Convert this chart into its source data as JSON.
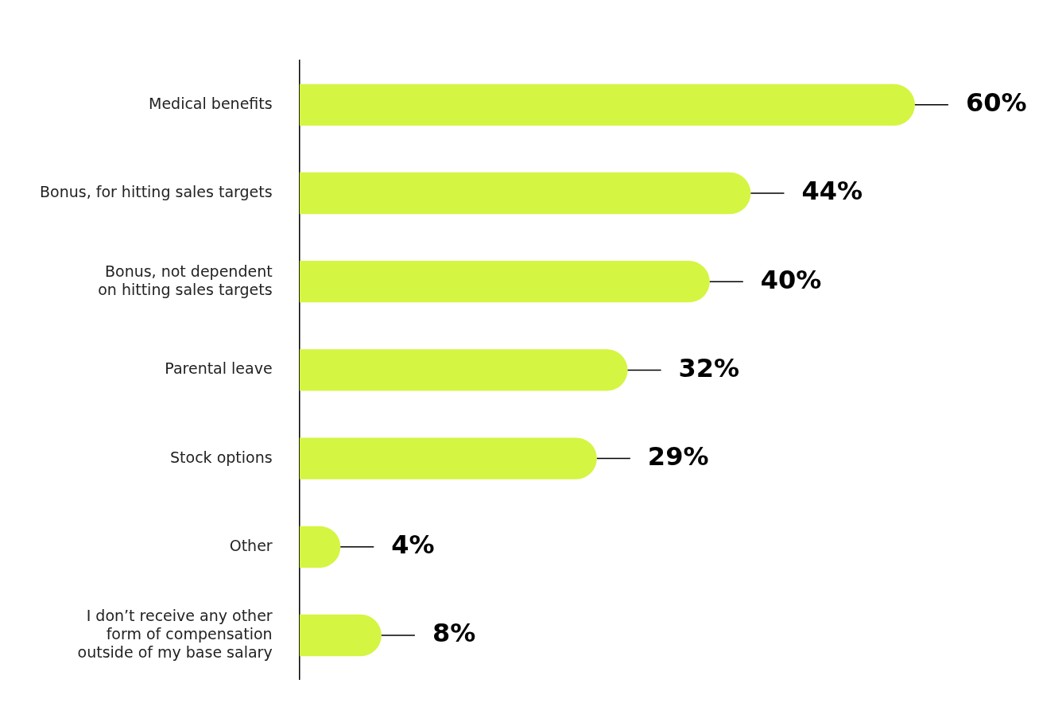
{
  "chart_data": {
    "type": "bar",
    "orientation": "horizontal",
    "categories": [
      "Medical benefits",
      "Bonus, for hitting sales targets",
      "Bonus, not dependent\non hitting sales targets",
      "Parental leave",
      "Stock options",
      "Other",
      "I don’t receive any other\nform of compensation\noutside of my base salary"
    ],
    "values": [
      60,
      44,
      40,
      32,
      29,
      4,
      8
    ],
    "value_labels": [
      "60%",
      "44%",
      "40%",
      "32%",
      "29%",
      "4%",
      "8%"
    ],
    "color": "#d4f542",
    "grid": false,
    "legend": false
  }
}
